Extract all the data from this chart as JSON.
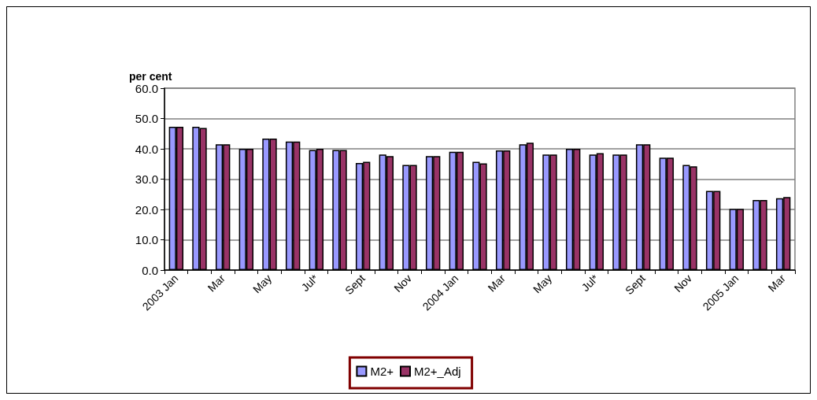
{
  "chart_data": {
    "type": "bar",
    "ylabel": "per cent",
    "categories": [
      "2003 Jan",
      null,
      "Mar",
      null,
      "May",
      null,
      "Jul*",
      null,
      "Sept",
      null,
      "Nov",
      null,
      "2004 Jan",
      null,
      "Mar",
      null,
      "May",
      null,
      "Jul*",
      null,
      "Sept",
      null,
      "Nov",
      null,
      "2005 Jan",
      null,
      "Mar"
    ],
    "series": [
      {
        "name": "M2+",
        "color": "#9999ff",
        "values": [
          47.3,
          47.3,
          41.5,
          40.0,
          43.4,
          42.4,
          39.6,
          39.6,
          35.3,
          38.1,
          34.7,
          37.6,
          39.0,
          35.7,
          39.5,
          41.5,
          38.1,
          40.0,
          38.1,
          38.1,
          41.5,
          37.1,
          34.7,
          26.1,
          20.2,
          23.1,
          23.7
        ]
      },
      {
        "name": "M2+_Adj",
        "color": "#993366",
        "values": [
          47.3,
          46.9,
          41.5,
          40.0,
          43.4,
          42.4,
          40.0,
          39.6,
          35.7,
          37.6,
          34.7,
          37.6,
          39.0,
          35.2,
          39.5,
          42.0,
          38.1,
          40.0,
          38.6,
          38.1,
          41.5,
          37.1,
          34.2,
          26.1,
          20.2,
          23.1,
          24.1
        ]
      }
    ],
    "ylim": [
      0,
      60
    ],
    "yticks": [
      {
        "value": 0,
        "label": "0.0"
      },
      {
        "value": 10,
        "label": "10.0"
      },
      {
        "value": 20,
        "label": "20.0"
      },
      {
        "value": 30,
        "label": "30.0"
      },
      {
        "value": 40,
        "label": "40.0"
      },
      {
        "value": 50,
        "label": "50.0"
      },
      {
        "value": 60,
        "label": "60.0"
      }
    ],
    "grid": "y",
    "legend": "bottom"
  }
}
